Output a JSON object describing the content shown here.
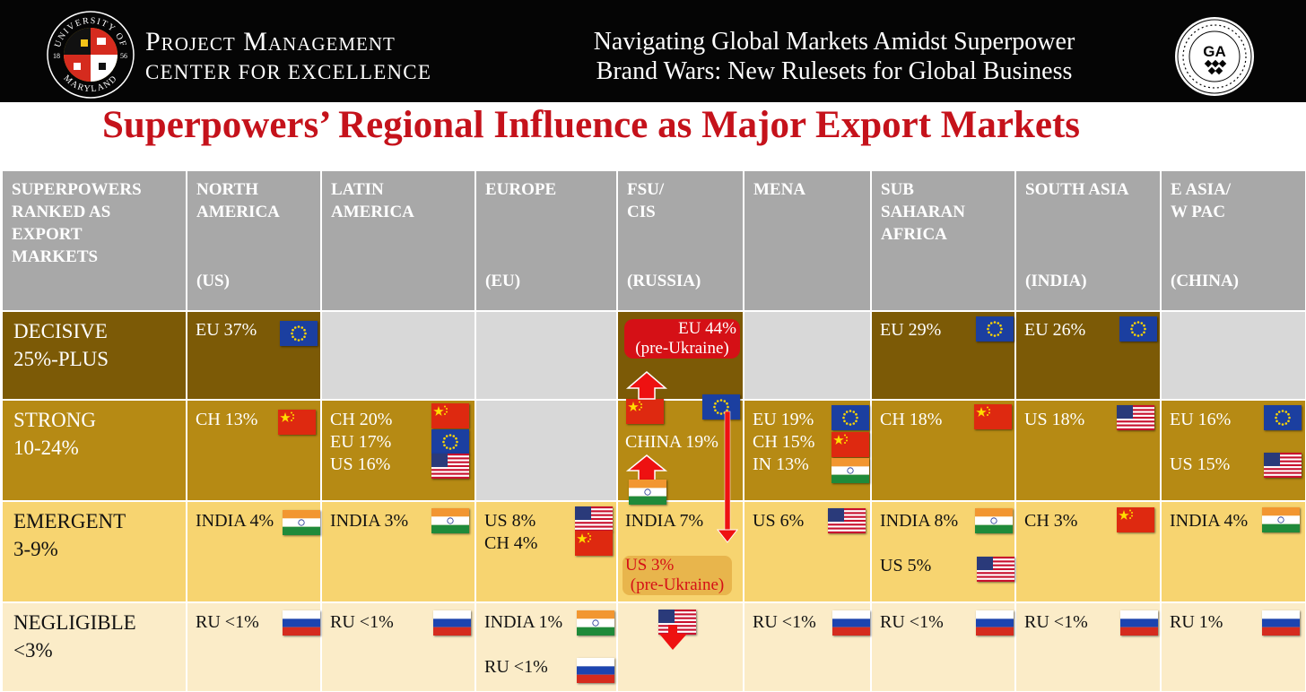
{
  "header": {
    "org_line1": "Project Management",
    "org_line2": "CENTER FOR EXCELLENCE",
    "seal_text_top": "UNIVERSITY OF",
    "seal_text_bottom": "MARYLAND",
    "seal_year_left": "18",
    "seal_year_right": "56",
    "banner_title_line1": "Navigating Global Markets Amidst Superpower",
    "banner_title_line2": "Brand Wars: New Rulesets for Global Business",
    "badge_text": "GA"
  },
  "main_title": "Superpowers’ Regional Influence as Major Export Markets",
  "colors": {
    "title_red": "#c5121b",
    "header_gray": "#a8a8a8",
    "decisive": "#7c5a06",
    "strong": "#b68a14",
    "emergent": "#f7d470",
    "negligible": "#fbecc8",
    "empty": "#d8d8d8",
    "arrow_red": "#ee1111"
  },
  "table": {
    "corner_header": "SUPERPOWERS RANKED AS EXPORT MARKETS",
    "columns": [
      {
        "name": "NORTH AMERICA",
        "sub": "(US)"
      },
      {
        "name": "LATIN AMERICA",
        "sub": ""
      },
      {
        "name": "EUROPE",
        "sub": "(EU)"
      },
      {
        "name": "FSU/ CIS",
        "sub": "(RUSSIA)"
      },
      {
        "name": "MENA",
        "sub": ""
      },
      {
        "name": "SUB SAHARAN AFRICA",
        "sub": ""
      },
      {
        "name": "SOUTH ASIA",
        "sub": "(INDIA)"
      },
      {
        "name": "E ASIA/ W PAC",
        "sub": "(CHINA)"
      }
    ],
    "rows": [
      {
        "line1": "DECISIVE",
        "line2": "25%-PLUS"
      },
      {
        "line1": "STRONG",
        "line2": "10-24%"
      },
      {
        "line1": "EMERGENT",
        "line2": "3-9%"
      },
      {
        "line1": "NEGLIGIBLE",
        "line2": "<3%"
      }
    ],
    "entries": {
      "na_decisive": "EU 37%",
      "ssa_decisive": "EU 29%",
      "sa_decisive": "EU 26%",
      "fsu_decisive": "EU 44%",
      "fsu_decisive_note": "(pre-Ukraine)",
      "na_strong": "CH 13%",
      "la_strong_1": "CH 20%",
      "la_strong_2": "EU 17%",
      "la_strong_3": "US 16%",
      "fsu_strong": "CHINA 19%",
      "mena_strong_1": "EU 19%",
      "mena_strong_2": "CH 15%",
      "mena_strong_3": "IN 13%",
      "ssa_strong": "CH 18%",
      "sa_strong": "US 18%",
      "ea_strong_1": "EU 16%",
      "ea_strong_2": "US 15%",
      "na_emergent": "INDIA 4%",
      "la_emergent": "INDIA 3%",
      "eu_emergent_1": "US 8%",
      "eu_emergent_2": "CH 4%",
      "fsu_emergent": "INDIA 7%",
      "fsu_emergent_note1": "US 3%",
      "fsu_emergent_note2": "(pre-Ukraine)",
      "mena_emergent": "US 6%",
      "ssa_emergent_1": "INDIA 8%",
      "ssa_emergent_2": "US 5%",
      "sa_emergent": "CH 3%",
      "ea_emergent": "INDIA 4%",
      "na_negligible": "RU <1%",
      "la_negligible": "RU <1%",
      "eu_negligible_1": "INDIA 1%",
      "eu_negligible_2": "RU <1%",
      "mena_negligible": "RU <1%",
      "ssa_negligible": "RU <1%",
      "sa_negligible": "RU <1%",
      "ea_negligible": "RU 1%"
    }
  }
}
